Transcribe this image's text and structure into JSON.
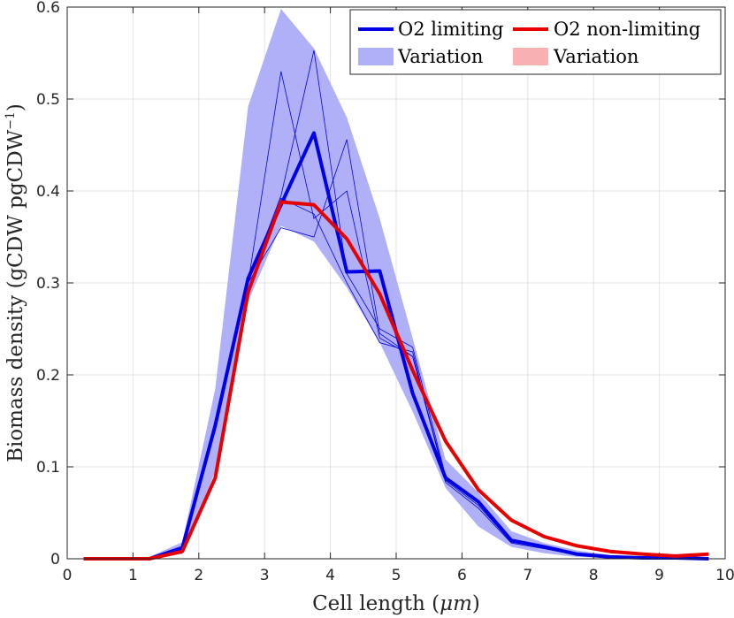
{
  "chart_data": {
    "type": "line",
    "title": "",
    "xlabel": "Cell length (",
    "xlabel_symbol": "μm",
    "xlabel_close": ")",
    "ylabel": "Biomass density (gCDW pgCDW",
    "ylabel_exp": "−1",
    "ylabel_close": ")",
    "xlim": [
      0,
      10
    ],
    "ylim": [
      0,
      0.6
    ],
    "xticks": [
      0,
      1,
      2,
      3,
      4,
      5,
      6,
      7,
      8,
      9,
      10
    ],
    "xtick_labels": [
      "0",
      "1",
      "2",
      "3",
      "4",
      "5",
      "6",
      "7",
      "8",
      "9",
      "10"
    ],
    "yticks": [
      0,
      0.1,
      0.2,
      0.3,
      0.4,
      0.5,
      0.6
    ],
    "ytick_labels": [
      "0",
      "0.1",
      "0.2",
      "0.3",
      "0.4",
      "0.5",
      "0.6"
    ],
    "grid": true,
    "legend_position": "top-right",
    "x": [
      0.25,
      0.75,
      1.25,
      1.75,
      2.25,
      2.75,
      3.25,
      3.75,
      4.25,
      4.75,
      5.25,
      5.75,
      6.25,
      6.75,
      7.25,
      7.75,
      8.25,
      8.75,
      9.25,
      9.75
    ],
    "series": [
      {
        "name": "O2 limiting",
        "color": "#0000e6",
        "values": [
          0,
          0,
          0,
          0.012,
          0.145,
          0.305,
          0.385,
          0.463,
          0.312,
          0.313,
          0.18,
          0.088,
          0.062,
          0.02,
          0.013,
          0.005,
          0.002,
          0.001,
          0.001,
          0
        ]
      },
      {
        "name": "O2 non-limiting",
        "color": "#e60000",
        "values": [
          0,
          0,
          0,
          0.008,
          0.088,
          0.29,
          0.388,
          0.385,
          0.348,
          0.288,
          0.205,
          0.128,
          0.075,
          0.042,
          0.024,
          0.014,
          0.008,
          0.005,
          0.003,
          0.005
        ]
      }
    ],
    "bands": [
      {
        "name": "Variation",
        "color": "#b0b0f8",
        "series": "O2 limiting",
        "lower": [
          0,
          0,
          0,
          0.005,
          0.095,
          0.28,
          0.362,
          0.345,
          0.295,
          0.235,
          0.16,
          0.077,
          0.035,
          0.013,
          0.006,
          0.002,
          0.001,
          0,
          0,
          0
        ],
        "upper": [
          0,
          0,
          0.002,
          0.018,
          0.185,
          0.492,
          0.598,
          0.555,
          0.48,
          0.37,
          0.24,
          0.108,
          0.072,
          0.03,
          0.017,
          0.009,
          0.004,
          0.002,
          0.001,
          0.001
        ]
      },
      {
        "name": "Variation",
        "color": "#f8b0b0",
        "series": "O2 non-limiting",
        "lower": [],
        "upper": []
      }
    ],
    "replicates": [
      {
        "values": [
          0,
          0,
          0,
          0.012,
          0.14,
          0.3,
          0.53,
          0.37,
          0.4,
          0.24,
          0.22,
          0.085,
          0.058,
          0.018,
          0.012,
          0.005,
          0.002,
          0.001,
          0.001,
          0
        ]
      },
      {
        "values": [
          0,
          0,
          0,
          0.012,
          0.14,
          0.3,
          0.395,
          0.553,
          0.31,
          0.25,
          0.23,
          0.09,
          0.06,
          0.02,
          0.012,
          0.005,
          0.002,
          0.001,
          0.001,
          0
        ]
      },
      {
        "values": [
          0,
          0,
          0,
          0.012,
          0.14,
          0.3,
          0.36,
          0.35,
          0.456,
          0.245,
          0.22,
          0.088,
          0.06,
          0.019,
          0.012,
          0.004,
          0.002,
          0.001,
          0.001,
          0
        ]
      },
      {
        "values": [
          0,
          0,
          0,
          0.012,
          0.14,
          0.3,
          0.392,
          0.375,
          0.3,
          0.235,
          0.225,
          0.083,
          0.055,
          0.017,
          0.011,
          0.004,
          0.002,
          0.001,
          0.001,
          0
        ]
      }
    ]
  }
}
